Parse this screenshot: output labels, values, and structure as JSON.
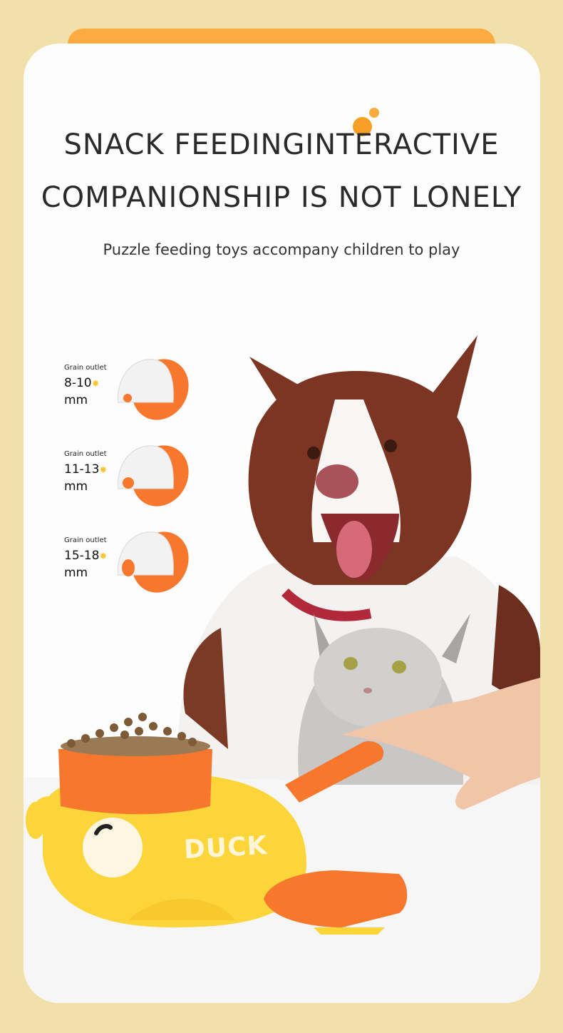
{
  "headline": {
    "line1": "SNACK FEEDINGINTERACTIVE",
    "line2": "COMPANIONSHIP IS NOT LONELY"
  },
  "subtitle": "Puzzle feeding toys accompany children to play",
  "outlets": [
    {
      "label": "Grain outlet",
      "size": "8-10",
      "unit": "mm"
    },
    {
      "label": "Grain outlet",
      "size": "11-13",
      "unit": "mm"
    },
    {
      "label": "Grain outlet",
      "size": "15-18",
      "unit": "mm"
    }
  ],
  "product_text": "DUCK",
  "colors": {
    "background": "#f2e0ab",
    "tab": "#fbab40",
    "accent_orange": "#f7772c",
    "duck_yellow": "#fbd53a"
  }
}
